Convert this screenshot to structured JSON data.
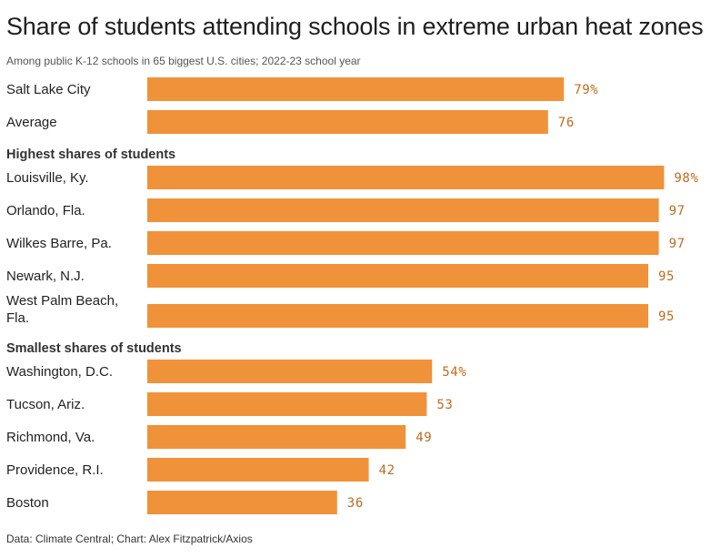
{
  "chart_data": {
    "type": "bar",
    "orientation": "horizontal",
    "title": "Share of students attending schools in extreme urban heat zones",
    "subtitle": "Among public K-12 schools in 65 biggest U.S. cities; 2022-23 school year",
    "source": "Data: Climate Central; Chart: Alex Fitzpatrick/Axios",
    "unit_suffix": "%",
    "xlim": [
      0,
      100
    ],
    "grid": false,
    "legend": "none",
    "colors": {
      "bar": "#F0923A",
      "value_text": "#C06A1E"
    },
    "rows": [
      {
        "kind": "bar",
        "label": "Salt Lake City",
        "value": 79,
        "value_label": "79%"
      },
      {
        "kind": "bar",
        "label": "Average",
        "value": 76,
        "value_label": "76"
      },
      {
        "kind": "section",
        "label": "Highest shares of students"
      },
      {
        "kind": "bar",
        "label": "Louisville, Ky.",
        "value": 98,
        "value_label": "98%"
      },
      {
        "kind": "bar",
        "label": "Orlando, Fla.",
        "value": 97,
        "value_label": "97"
      },
      {
        "kind": "bar",
        "label": "Wilkes Barre, Pa.",
        "value": 97,
        "value_label": "97"
      },
      {
        "kind": "bar",
        "label": "Newark, N.J.",
        "value": 95,
        "value_label": "95"
      },
      {
        "kind": "bar",
        "label": "West Palm Beach, Fla.",
        "label_lines": [
          "West Palm Beach,",
          "Fla."
        ],
        "value": 95,
        "value_label": "95"
      },
      {
        "kind": "section",
        "label": "Smallest shares of students"
      },
      {
        "kind": "bar",
        "label": "Washington, D.C.",
        "value": 54,
        "value_label": "54%"
      },
      {
        "kind": "bar",
        "label": "Tucson, Ariz.",
        "value": 53,
        "value_label": "53"
      },
      {
        "kind": "bar",
        "label": "Richmond, Va.",
        "value": 49,
        "value_label": "49"
      },
      {
        "kind": "bar",
        "label": "Providence, R.I.",
        "value": 42,
        "value_label": "42"
      },
      {
        "kind": "bar",
        "label": "Boston",
        "value": 36,
        "value_label": "36"
      }
    ]
  }
}
